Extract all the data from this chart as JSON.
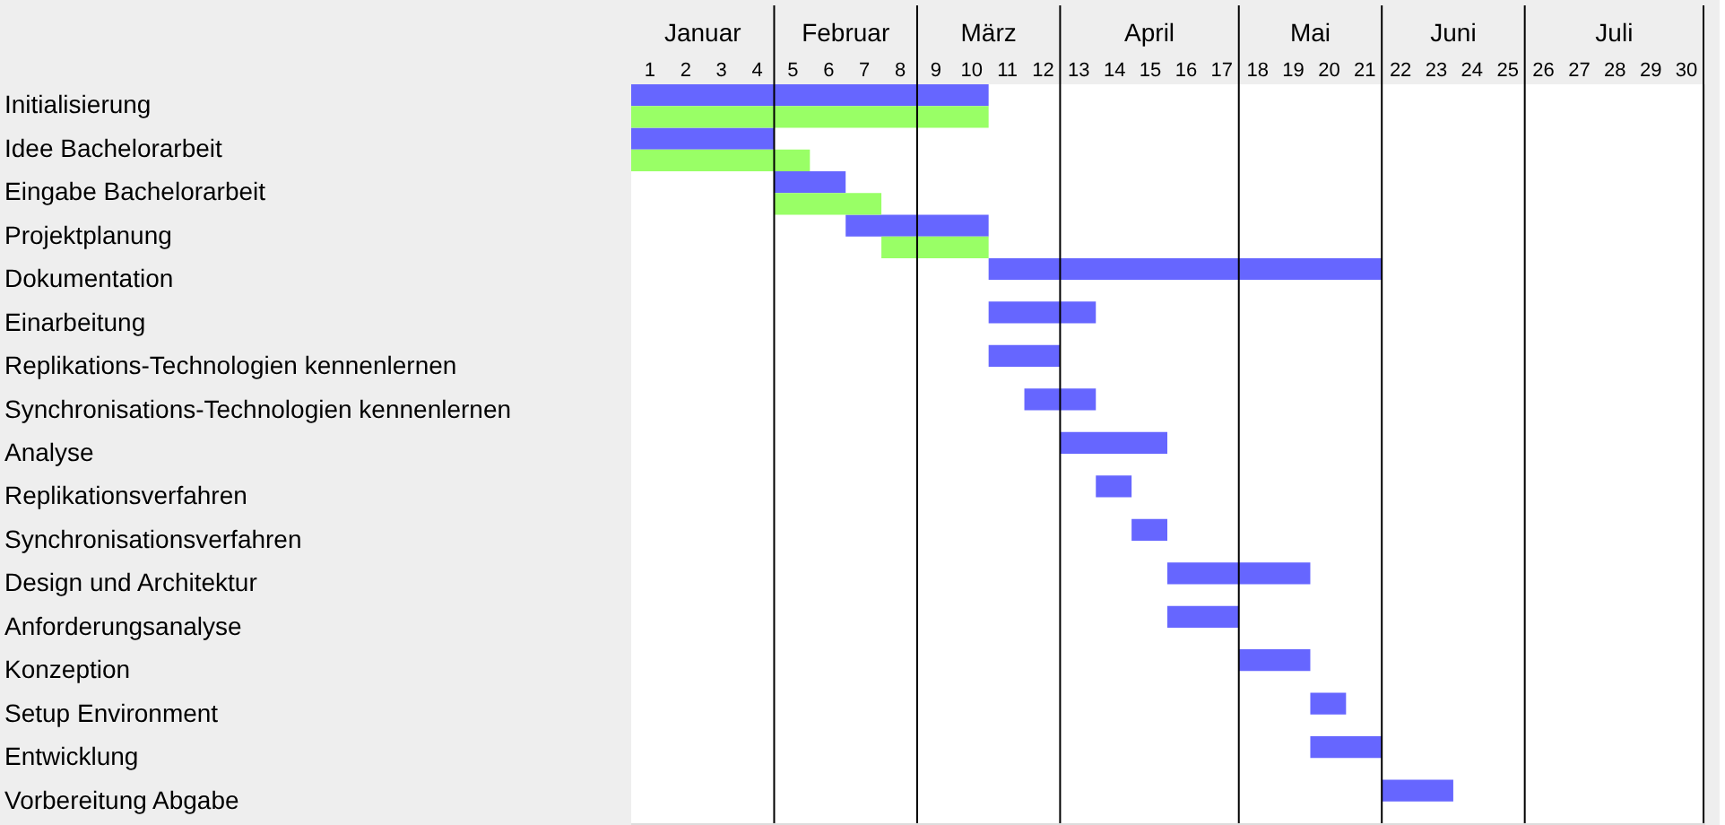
{
  "chart_data": {
    "type": "bar",
    "orientation": "horizontal",
    "categories": [
      "Initialisierung",
      "Idee Bachelorarbeit",
      "Eingabe Bachelorarbeit",
      "Projektplanung",
      "Dokumentation",
      "Einarbeitung",
      "Replikations-Technologien kennenlernen",
      "Synchronisations-Technologien kennenlernen",
      "Analyse",
      "Replikationsverfahren",
      "Synchronisationsverfahren",
      "Design und Architektur",
      "Anforderungsanalyse",
      "Konzeption",
      "Setup Environment",
      "Entwicklung",
      "Vorbereitung Abgabe"
    ],
    "series": [
      {
        "color": "#6666ff",
        "base": [
          0,
          0,
          4,
          6,
          10,
          10,
          10,
          11,
          12,
          13,
          14,
          15,
          15,
          17,
          19,
          19,
          21
        ],
        "values": [
          10,
          4,
          2,
          4,
          11,
          3,
          2,
          2,
          3,
          1,
          1,
          4,
          2,
          2,
          1,
          2,
          2
        ]
      },
      {
        "color": "#99ff66",
        "base": [
          0,
          0,
          4,
          7,
          null,
          null,
          null,
          null,
          null,
          null,
          null,
          null,
          null,
          null,
          null,
          null,
          null
        ],
        "values": [
          10,
          5,
          3,
          3,
          null,
          null,
          null,
          null,
          null,
          null,
          null,
          null,
          null,
          null,
          null,
          null,
          null
        ]
      }
    ],
    "xlim": [
      0,
      30
    ],
    "xticks": [
      {
        "value": 0.5,
        "label": "1"
      },
      {
        "value": 1.5,
        "label": "2"
      },
      {
        "value": 2.5,
        "label": "3"
      },
      {
        "value": 3.5,
        "label": "4"
      },
      {
        "value": 4.5,
        "label": "5"
      },
      {
        "value": 5.5,
        "label": "6"
      },
      {
        "value": 6.5,
        "label": "7"
      },
      {
        "value": 7.5,
        "label": "8"
      },
      {
        "value": 8.5,
        "label": "9"
      },
      {
        "value": 9.5,
        "label": "10"
      },
      {
        "value": 10.5,
        "label": "11"
      },
      {
        "value": 11.5,
        "label": "12"
      },
      {
        "value": 12.5,
        "label": "13"
      },
      {
        "value": 13.5,
        "label": "14"
      },
      {
        "value": 14.5,
        "label": "15"
      },
      {
        "value": 15.5,
        "label": "16"
      },
      {
        "value": 16.5,
        "label": "17"
      },
      {
        "value": 17.5,
        "label": "18"
      },
      {
        "value": 18.5,
        "label": "19"
      },
      {
        "value": 19.5,
        "label": "20"
      },
      {
        "value": 20.5,
        "label": "21"
      },
      {
        "value": 21.5,
        "label": "22"
      },
      {
        "value": 22.5,
        "label": "23"
      },
      {
        "value": 23.5,
        "label": "24"
      },
      {
        "value": 24.5,
        "label": "25"
      },
      {
        "value": 25.5,
        "label": "26"
      },
      {
        "value": 26.5,
        "label": "27"
      },
      {
        "value": 27.5,
        "label": "28"
      },
      {
        "value": 28.5,
        "label": "29"
      },
      {
        "value": 29.5,
        "label": "30"
      }
    ],
    "bands": [
      {
        "axis": "x",
        "from": 0,
        "to": 4,
        "label": "Januar",
        "color": "#ffffff"
      },
      {
        "axis": "x",
        "from": 4,
        "to": 8,
        "label": "Februar",
        "color": "#ffffff"
      },
      {
        "axis": "x",
        "from": 8,
        "to": 12,
        "label": "März",
        "color": "#ffffff"
      },
      {
        "axis": "x",
        "from": 12,
        "to": 17,
        "label": "April",
        "color": "#ffffff"
      },
      {
        "axis": "x",
        "from": 17,
        "to": 21,
        "label": "Mai",
        "color": "#ffffff"
      },
      {
        "axis": "x",
        "from": 21,
        "to": 25,
        "label": "Juni",
        "color": "#ffffff"
      },
      {
        "axis": "x",
        "from": 25,
        "to": 30,
        "label": "Juli",
        "color": "#ffffff"
      }
    ],
    "legend": false,
    "stacked": false
  }
}
